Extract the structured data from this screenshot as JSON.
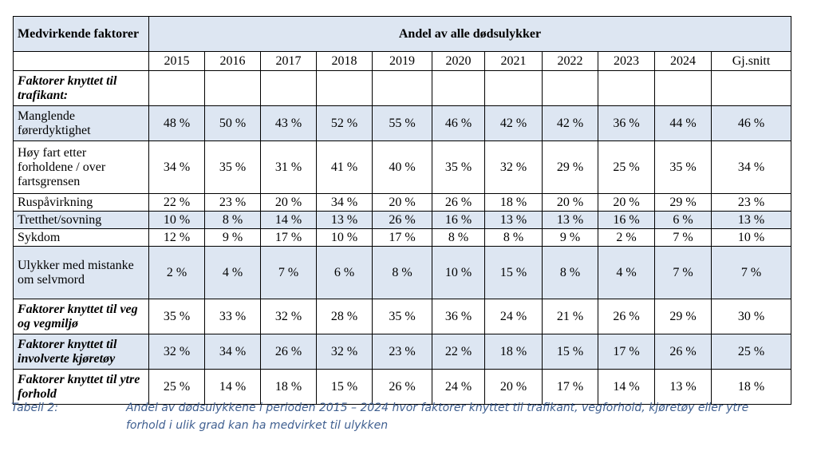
{
  "table": {
    "corner_header": "Medvirkende faktorer",
    "group_header": "Andel av alle dødsulykker",
    "years": [
      "2015",
      "2016",
      "2017",
      "2018",
      "2019",
      "2020",
      "2021",
      "2022",
      "2023",
      "2024",
      "Gj.snitt"
    ],
    "rows": [
      {
        "label": "Faktorer knyttet til trafikant:",
        "style": "bold-italic",
        "shade": false,
        "values": []
      },
      {
        "label": "Manglende førerdyktighet",
        "style": "normal",
        "shade": true,
        "values": [
          "48 %",
          "50 %",
          "43 %",
          "52 %",
          "55 %",
          "46 %",
          "42 %",
          "42 %",
          "36 %",
          "44 %",
          "46 %"
        ]
      },
      {
        "label": "Høy fart etter forholdene / over fartsgrensen",
        "style": "normal",
        "shade": false,
        "values": [
          "34 %",
          "35 %",
          "31 %",
          "41 %",
          "40 %",
          "35 %",
          "32 %",
          "29 %",
          "25 %",
          "35 %",
          "34 %"
        ]
      },
      {
        "label": "Ruspåvirkning",
        "style": "normal",
        "shade": false,
        "values": [
          "22 %",
          "23 %",
          "20 %",
          "34 %",
          "20 %",
          "26 %",
          "18 %",
          "20 %",
          "20 %",
          "29 %",
          "23 %"
        ]
      },
      {
        "label": "Tretthet/sovning",
        "style": "normal",
        "shade": true,
        "values": [
          "10 %",
          "8 %",
          "14 %",
          "13 %",
          "26 %",
          "16 %",
          "13 %",
          "13 %",
          "16 %",
          "6 %",
          "13 %"
        ]
      },
      {
        "label": "Sykdom",
        "style": "normal",
        "shade": false,
        "values": [
          "12 %",
          "9 %",
          "17 %",
          "10 %",
          "17 %",
          "8 %",
          "8 %",
          "9 %",
          "2 %",
          "7 %",
          "10 %"
        ]
      },
      {
        "label": "Ulykker med mistanke om selvmord",
        "style": "normal",
        "shade": true,
        "values": [
          "2 %",
          "4 %",
          "7 %",
          "6 %",
          "8 %",
          "10 %",
          "15 %",
          "8 %",
          "4 %",
          "7 %",
          "7 %"
        ]
      },
      {
        "label": "Faktorer knyttet til veg og vegmiljø",
        "style": "bold-italic",
        "shade": false,
        "values": [
          "35 %",
          "33 %",
          "32 %",
          "28 %",
          "35 %",
          "36 %",
          "24 %",
          "21 %",
          "26 %",
          "29 %",
          "30 %"
        ]
      },
      {
        "label": "Faktorer knyttet til involverte kjøretøy",
        "style": "bold-italic",
        "shade": true,
        "values": [
          "32 %",
          "34 %",
          "26 %",
          "32 %",
          "23 %",
          "22 %",
          "18 %",
          "15 %",
          "17 %",
          "26 %",
          "25 %"
        ]
      },
      {
        "label": "Faktorer knyttet til ytre forhold",
        "style": "bold-italic",
        "shade": false,
        "values": [
          "25 %",
          "14 %",
          "18 %",
          "15 %",
          "26 %",
          "24 %",
          "20 %",
          "17 %",
          "14 %",
          "13 %",
          "18 %"
        ]
      }
    ]
  },
  "caption": {
    "label": "Tabell 2:",
    "text": "Andel av dødsulykkene i perioden 2015 – 2024 hvor faktorer knyttet til trafikant, vegforhold, kjøretøy eller ytre forhold i ulik grad kan ha medvirket til ulykken"
  },
  "colors": {
    "shade": "#dde6f2",
    "caption": "#3f5f90"
  }
}
